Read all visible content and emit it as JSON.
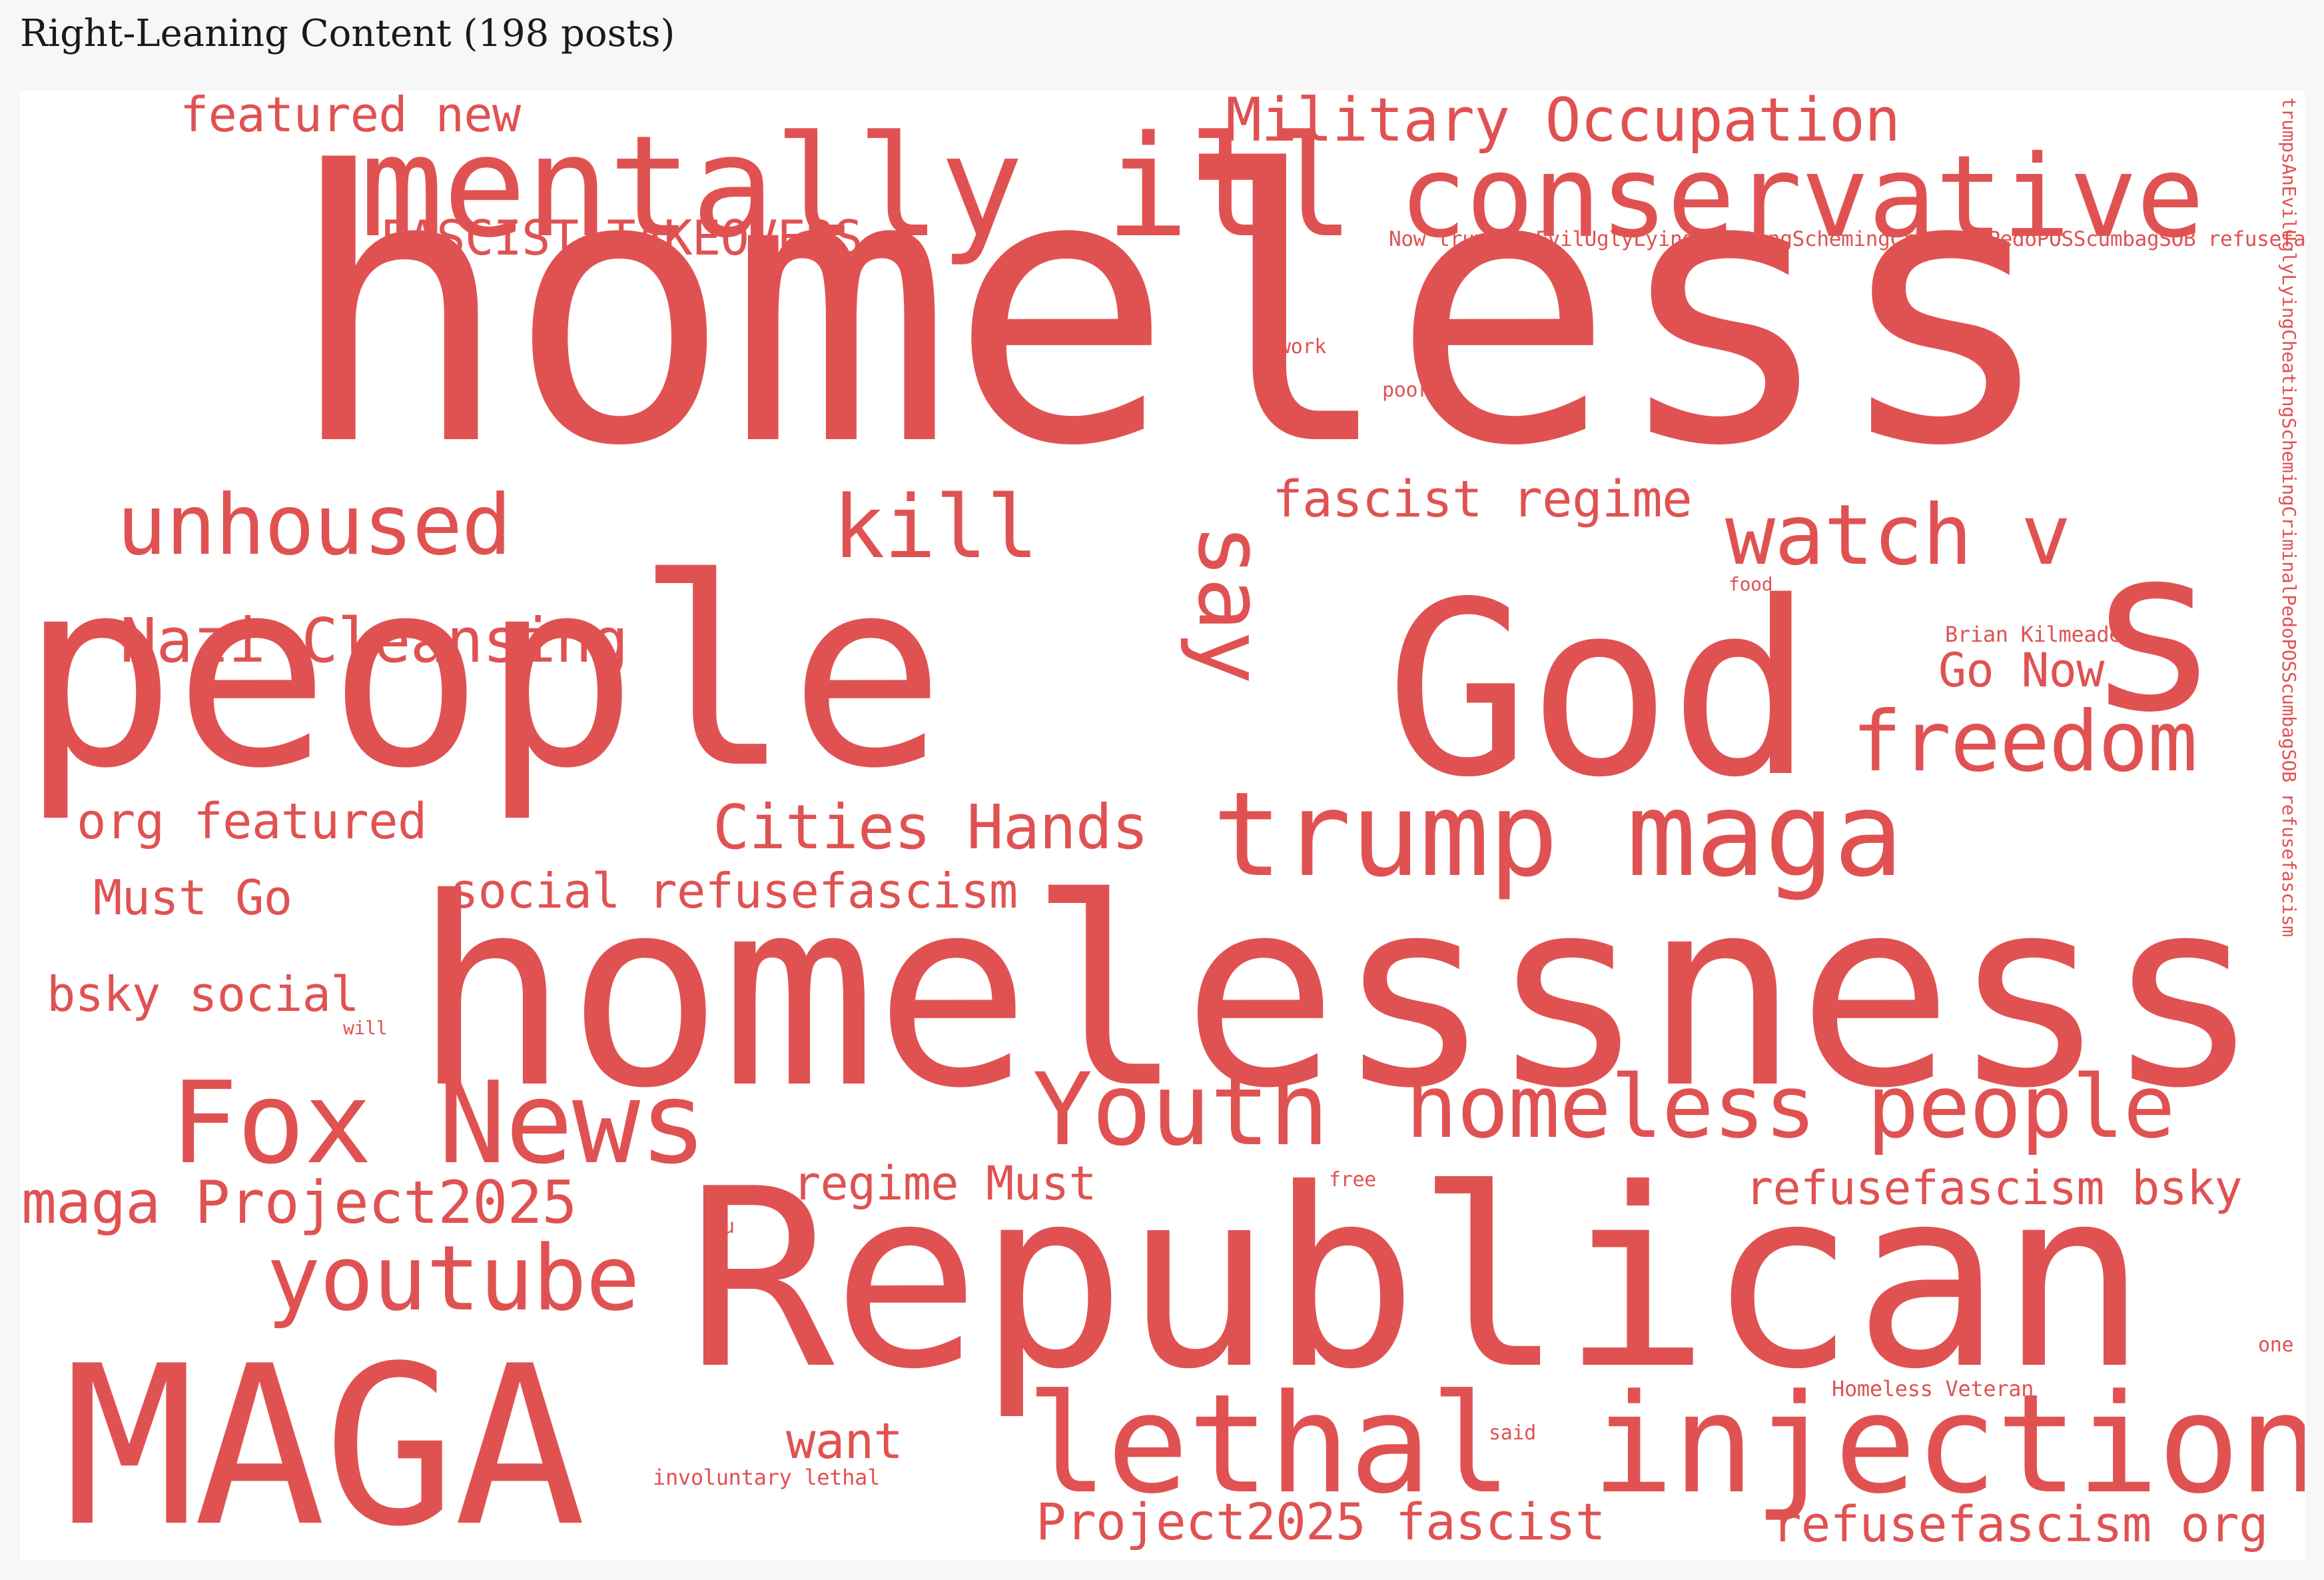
{
  "title": "Right-Leaning Content (198 posts)",
  "colors": {
    "word": "#e05252",
    "background": "#ffffff",
    "page": "#f7f7f7"
  },
  "words": [
    {
      "text": "homeless"
    },
    {
      "text": "homelessness"
    },
    {
      "text": "Republican"
    },
    {
      "text": "people"
    },
    {
      "text": "God"
    },
    {
      "text": "MAGA"
    },
    {
      "text": "s"
    },
    {
      "text": "mentally ill"
    },
    {
      "text": "conservative"
    },
    {
      "text": "lethal injection"
    },
    {
      "text": "trump maga"
    },
    {
      "text": "Fox News"
    },
    {
      "text": "Youth"
    },
    {
      "text": "homeless people"
    },
    {
      "text": "youtube"
    },
    {
      "text": "kill"
    },
    {
      "text": "say"
    },
    {
      "text": "unhoused"
    },
    {
      "text": "watch v"
    },
    {
      "text": "freedom"
    },
    {
      "text": "Military Occupation"
    },
    {
      "text": "Nazi Cleansing"
    },
    {
      "text": "Cities Hands"
    },
    {
      "text": "maga Project2025"
    },
    {
      "text": "featured new"
    },
    {
      "text": "FASCIST TAKEOVERS"
    },
    {
      "text": "fascist regime"
    },
    {
      "text": "org featured"
    },
    {
      "text": "social refusefascism"
    },
    {
      "text": "Must Go"
    },
    {
      "text": "bsky social"
    },
    {
      "text": "regime Must"
    },
    {
      "text": "refusefascism bsky"
    },
    {
      "text": "Project2025 fascist"
    },
    {
      "text": "refusefascism org"
    },
    {
      "text": "want"
    },
    {
      "text": "Go Now"
    },
    {
      "text": "Now trumpsAnEvilUglyLyingCheatingSchemingCriminalPedoPOSScumbagSOB refusefascism"
    },
    {
      "text": "trumpsAnEvilUglyLyingCheatingSchemingCriminalPedoPOSScumbagSOB refusefascism"
    },
    {
      "text": "work"
    },
    {
      "text": "poor"
    },
    {
      "text": "food"
    },
    {
      "text": "Brian Kilmeade"
    },
    {
      "text": "will"
    },
    {
      "text": "free"
    },
    {
      "text": "u"
    },
    {
      "text": "one"
    },
    {
      "text": "Homeless Veteran"
    },
    {
      "text": "said"
    },
    {
      "text": "involuntary lethal"
    }
  ]
}
